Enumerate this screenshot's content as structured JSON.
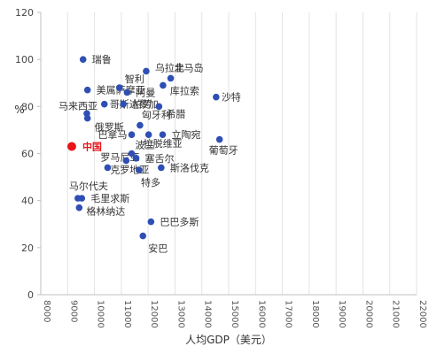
{
  "chart_data": {
    "type": "scatter",
    "title": "",
    "xlabel": "人均GDP（美元）",
    "ylabel": "%",
    "xscale": "log",
    "xlim": [
      8000,
      120000
    ],
    "ylim": [
      0,
      120
    ],
    "yticks": [
      0,
      20,
      40,
      60,
      80,
      100,
      120
    ],
    "xticks": [
      8000,
      9000,
      10000,
      11000,
      12000,
      13000,
      14000,
      15000,
      16000,
      17000,
      18000,
      19000,
      20000,
      21000,
      22000
    ],
    "xtick_labels": [
      "8000",
      "9000",
      "10000",
      "11000",
      "12000",
      "13000",
      "14000",
      "15000",
      "16000",
      "17000",
      "18000",
      "19000",
      "20000",
      "21000",
      "22000"
    ],
    "grid": "vertical",
    "colors": {
      "point": "#2f4fb4",
      "highlight": "#e8141b",
      "grid": "#e3e3e3",
      "axis": "#bfbfbf"
    },
    "points": [
      {
        "label": "中国",
        "x": 10000,
        "y": 63,
        "highlight": true
      },
      {
        "label": "瑞鲁",
        "x": 10850,
        "y": 100
      },
      {
        "label": "美属萨摩亚",
        "x": 11200,
        "y": 87
      },
      {
        "label": "马来西亚",
        "x": 11150,
        "y": 77
      },
      {
        "label": "俄罗斯",
        "x": 11200,
        "y": 75
      },
      {
        "label": "哥斯达黎加",
        "x": 12650,
        "y": 81
      },
      {
        "label": "智利",
        "x": 14100,
        "y": 88
      },
      {
        "label": "阿曼",
        "x": 14900,
        "y": 86
      },
      {
        "label": "帕劳",
        "x": 14500,
        "y": 81
      },
      {
        "label": "巴拿马",
        "x": 15400,
        "y": 68
      },
      {
        "label": "匈牙利",
        "x": 16350,
        "y": 72
      },
      {
        "label": "乌拉圭",
        "x": 17100,
        "y": 95
      },
      {
        "label": "北马岛",
        "x": 20400,
        "y": 92
      },
      {
        "label": "库拉索",
        "x": 19300,
        "y": 89
      },
      {
        "label": "希腊",
        "x": 18750,
        "y": 80
      },
      {
        "label": "沙特",
        "x": 28300,
        "y": 84
      },
      {
        "label": "立陶宛",
        "x": 19250,
        "y": 68
      },
      {
        "label": "拉脱维亚",
        "x": 17400,
        "y": 68
      },
      {
        "label": "葡萄牙",
        "x": 29000,
        "y": 66
      },
      {
        "label": "罗马尼亚",
        "x": 12950,
        "y": 54
      },
      {
        "label": "波兰",
        "x": 15400,
        "y": 60
      },
      {
        "label": "塞舌尔",
        "x": 15900,
        "y": 58
      },
      {
        "label": "克罗地亚",
        "x": 14800,
        "y": 57
      },
      {
        "label": "特多",
        "x": 16250,
        "y": 53
      },
      {
        "label": "斯洛伐克",
        "x": 19050,
        "y": 54
      },
      {
        "label": "马尔代夫",
        "x": 10450,
        "y": 41
      },
      {
        "label": "毛里求斯",
        "x": 10750,
        "y": 41
      },
      {
        "label": "格林纳达",
        "x": 10550,
        "y": 37
      },
      {
        "label": "巴巴多斯",
        "x": 17700,
        "y": 31
      },
      {
        "label": "安巴",
        "x": 16700,
        "y": 25
      }
    ]
  }
}
